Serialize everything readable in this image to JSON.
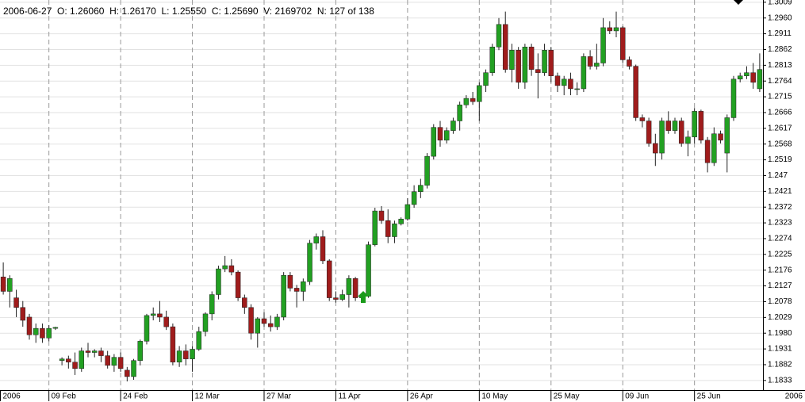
{
  "chart_data": {
    "type": "candlestick",
    "title": "2006-06-27  O: 1.26060  H: 1.26170  L: 1.25550  C: 1.25690  V: 2169702  N: 127 of 138",
    "corner_label": "2006",
    "categories": [
      "2006",
      null,
      null,
      null,
      null,
      null,
      null,
      "09 Feb",
      null,
      null,
      null,
      null,
      null,
      null,
      null,
      null,
      null,
      null,
      "24 Feb",
      null,
      null,
      null,
      null,
      null,
      null,
      null,
      null,
      null,
      null,
      "12 Mar",
      null,
      null,
      null,
      null,
      null,
      null,
      null,
      null,
      null,
      null,
      "27 Mar",
      null,
      null,
      null,
      null,
      null,
      null,
      null,
      null,
      null,
      null,
      "11 Apr",
      null,
      null,
      null,
      null,
      null,
      null,
      null,
      null,
      null,
      null,
      "26 Apr",
      null,
      null,
      null,
      null,
      null,
      null,
      null,
      null,
      null,
      null,
      "10 May",
      null,
      null,
      null,
      null,
      null,
      null,
      null,
      null,
      null,
      null,
      "25 May",
      null,
      null,
      null,
      null,
      null,
      null,
      null,
      null,
      null,
      null,
      "09 Jun",
      null,
      null,
      null,
      null,
      null,
      null,
      null,
      null,
      null,
      null,
      "25 Jun",
      null,
      null,
      null,
      null,
      null,
      null,
      null,
      null,
      null,
      null
    ],
    "open": [
      1.2155,
      1.211,
      1.209,
      1.206,
      1.203,
      1.1975,
      1.1995,
      1.1965,
      1.1995,
      1.1895,
      1.19,
      1.189,
      1.187,
      1.1925,
      1.192,
      1.1925,
      1.191,
      1.188,
      1.1905,
      1.1865,
      1.1845,
      1.1895,
      1.1955,
      1.2035,
      1.204,
      1.203,
      1.2,
      1.189,
      1.1925,
      1.19,
      1.193,
      1.1985,
      1.204,
      1.21,
      1.218,
      1.219,
      1.217,
      1.209,
      1.206,
      1.198,
      1.2025,
      1.201,
      1.2,
      1.203,
      1.216,
      1.212,
      1.211,
      1.214,
      1.226,
      1.228,
      1.2205,
      1.209,
      1.2085,
      1.21,
      1.215,
      1.209,
      1.2095,
      1.2255,
      1.236,
      1.233,
      1.228,
      1.232,
      1.2335,
      1.238,
      1.242,
      1.244,
      1.253,
      1.262,
      1.258,
      1.261,
      1.264,
      1.269,
      1.271,
      1.27,
      1.275,
      1.279,
      1.287,
      1.294,
      1.28,
      1.286,
      1.276,
      1.287,
      1.28,
      1.279,
      1.286,
      1.278,
      1.275,
      1.277,
      1.274,
      1.274,
      1.284,
      1.281,
      1.282,
      1.293,
      1.292,
      1.293,
      1.283,
      1.281,
      1.265,
      1.264,
      1.257,
      1.254,
      1.264,
      1.261,
      1.264,
      1.257,
      1.259,
      1.267,
      1.258,
      1.251,
      1.26,
      1.254,
      1.265,
      1.277,
      1.278,
      1.279,
      1.274
    ],
    "high": [
      1.22,
      1.216,
      1.2115,
      1.208,
      1.204,
      1.201,
      1.201,
      1.2005,
      1.2,
      1.1905,
      1.191,
      1.192,
      1.1935,
      1.195,
      1.193,
      1.1935,
      1.1925,
      1.1915,
      1.192,
      1.1875,
      1.19,
      1.196,
      1.204,
      1.206,
      1.208,
      1.205,
      1.201,
      1.194,
      1.1945,
      1.194,
      1.2,
      1.2045,
      1.211,
      1.219,
      1.222,
      1.221,
      1.2175,
      1.21,
      1.207,
      1.203,
      1.2045,
      1.2035,
      1.204,
      1.217,
      1.217,
      1.213,
      1.215,
      1.227,
      1.229,
      1.23,
      1.221,
      1.211,
      1.2115,
      1.216,
      1.2155,
      1.2105,
      1.2265,
      1.237,
      1.2375,
      1.2365,
      1.233,
      1.234,
      1.24,
      1.244,
      1.246,
      1.254,
      1.263,
      1.264,
      1.262,
      1.265,
      1.27,
      1.272,
      1.273,
      1.276,
      1.28,
      1.288,
      1.296,
      1.298,
      1.288,
      1.287,
      1.288,
      1.288,
      1.285,
      1.288,
      1.287,
      1.279,
      1.278,
      1.279,
      1.276,
      1.285,
      1.286,
      1.288,
      1.296,
      1.295,
      1.298,
      1.2935,
      1.284,
      1.2815,
      1.266,
      1.265,
      1.26,
      1.265,
      1.267,
      1.265,
      1.265,
      1.261,
      1.268,
      1.2675,
      1.259,
      1.262,
      1.261,
      1.266,
      1.278,
      1.279,
      1.281,
      1.282,
      1.285
    ],
    "low": [
      1.21,
      1.206,
      1.203,
      1.2,
      1.196,
      1.195,
      1.195,
      1.1955,
      1.199,
      1.188,
      1.187,
      1.185,
      1.186,
      1.1905,
      1.1905,
      1.189,
      1.187,
      1.186,
      1.186,
      1.183,
      1.1835,
      1.188,
      1.1945,
      1.202,
      1.2015,
      1.199,
      1.188,
      1.1875,
      1.188,
      1.186,
      1.1925,
      1.197,
      1.202,
      1.2085,
      1.217,
      1.216,
      1.208,
      1.204,
      1.196,
      1.1935,
      1.2,
      1.1985,
      1.199,
      1.202,
      1.211,
      1.206,
      1.208,
      1.213,
      1.224,
      1.2195,
      1.208,
      1.2075,
      1.208,
      1.206,
      1.208,
      1.2075,
      1.209,
      1.225,
      1.232,
      1.226,
      1.226,
      1.2315,
      1.233,
      1.237,
      1.24,
      1.243,
      1.252,
      1.256,
      1.257,
      1.26,
      1.261,
      1.268,
      1.269,
      1.264,
      1.273,
      1.278,
      1.286,
      1.279,
      1.276,
      1.274,
      1.274,
      1.278,
      1.271,
      1.278,
      1.276,
      1.273,
      1.272,
      1.272,
      1.272,
      1.273,
      1.28,
      1.28,
      1.281,
      1.291,
      1.29,
      1.282,
      1.28,
      1.264,
      1.262,
      1.256,
      1.25,
      1.252,
      1.26,
      1.26,
      1.256,
      1.253,
      1.257,
      1.257,
      1.248,
      1.25,
      1.257,
      1.248,
      1.264,
      1.276,
      1.277,
      1.274,
      1.273
    ],
    "close": [
      1.211,
      1.215,
      1.206,
      1.202,
      1.1975,
      1.1995,
      1.1965,
      1.1995,
      1.1998,
      1.19,
      1.189,
      1.187,
      1.1925,
      1.192,
      1.1925,
      1.191,
      1.188,
      1.1905,
      1.187,
      1.1845,
      1.1895,
      1.1955,
      1.2035,
      1.204,
      1.203,
      1.2,
      1.189,
      1.1925,
      1.19,
      1.193,
      1.1985,
      1.204,
      1.21,
      1.218,
      1.219,
      1.217,
      1.209,
      1.206,
      1.198,
      1.2025,
      1.201,
      1.2,
      1.203,
      1.216,
      1.212,
      1.211,
      1.214,
      1.226,
      1.228,
      1.2205,
      1.209,
      1.2085,
      1.21,
      1.215,
      1.209,
      1.2095,
      1.2255,
      1.236,
      1.233,
      1.228,
      1.232,
      1.2335,
      1.238,
      1.242,
      1.244,
      1.253,
      1.262,
      1.258,
      1.261,
      1.264,
      1.269,
      1.271,
      1.27,
      1.275,
      1.279,
      1.287,
      1.294,
      1.28,
      1.286,
      1.276,
      1.287,
      1.28,
      1.279,
      1.286,
      1.278,
      1.275,
      1.277,
      1.274,
      1.274,
      1.284,
      1.281,
      1.282,
      1.293,
      1.292,
      1.293,
      1.283,
      1.281,
      1.265,
      1.264,
      1.257,
      1.254,
      1.264,
      1.261,
      1.264,
      1.257,
      1.259,
      1.267,
      1.258,
      1.251,
      1.26,
      1.258,
      1.265,
      1.277,
      1.278,
      1.279,
      1.276,
      1.28
    ],
    "up_color": "#22a022",
    "down_color": "#a01c1c",
    "ylim": [
      1.1803,
      1.3016
    ],
    "yticks": [
      1.1833,
      1.1882,
      1.1931,
      {
        "value": 1.198,
        "label": "1.1980"
      },
      1.2029,
      1.2078,
      1.2127,
      1.2176,
      1.2225,
      1.2274,
      1.2323,
      1.2372,
      1.2421,
      1.247,
      1.2519,
      1.2568,
      1.2617,
      1.2666,
      1.2715,
      1.2764,
      1.2813,
      1.2862,
      1.2911,
      {
        "value": 1.296,
        "label": "1.2960"
      },
      1.3009
    ],
    "grid": true
  }
}
